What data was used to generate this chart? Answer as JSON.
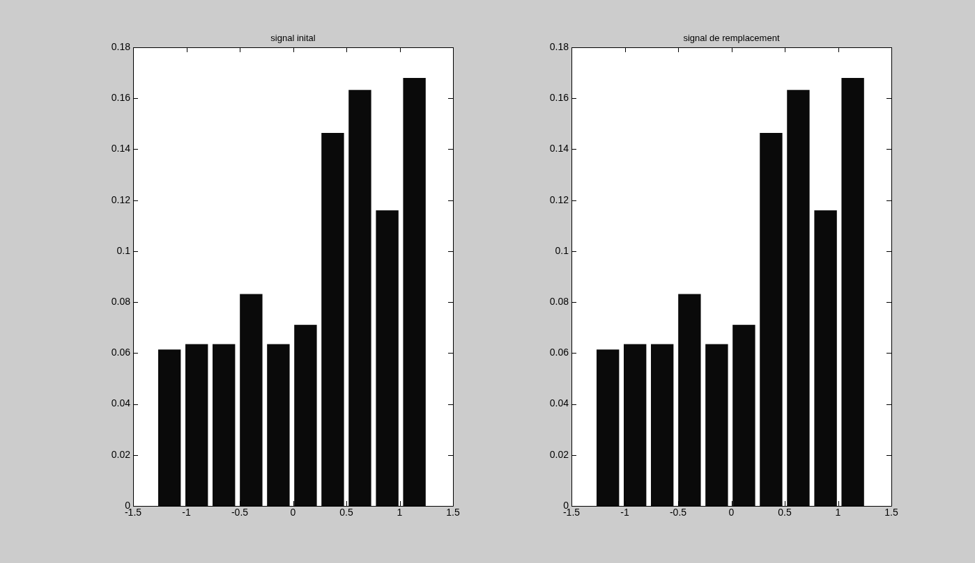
{
  "chart_data": [
    {
      "type": "bar",
      "title": "signal inital",
      "x": [
        -1.159,
        -0.904,
        -0.649,
        -0.393,
        -0.138,
        0.117,
        0.372,
        0.627,
        0.883,
        1.138
      ],
      "values": [
        0.0614,
        0.0635,
        0.0635,
        0.0832,
        0.0635,
        0.0711,
        0.1464,
        0.1633,
        0.116,
        0.168
      ],
      "color": "#0a0a0a",
      "xlim": [
        -1.5,
        1.5
      ],
      "xticks": [
        -1.5,
        -1,
        -0.5,
        0,
        0.5,
        1,
        1.5
      ],
      "ylim": [
        0,
        0.18
      ],
      "yticks": [
        0,
        0.02,
        0.04,
        0.06,
        0.08,
        0.1,
        0.12,
        0.14,
        0.16,
        0.18
      ],
      "grid": false
    },
    {
      "type": "bar",
      "title": "signal de remplacement",
      "x": [
        -1.159,
        -0.904,
        -0.649,
        -0.393,
        -0.138,
        0.117,
        0.372,
        0.627,
        0.883,
        1.138
      ],
      "values": [
        0.0614,
        0.0635,
        0.0635,
        0.0832,
        0.0635,
        0.0711,
        0.1464,
        0.1633,
        0.116,
        0.168
      ],
      "color": "#0a0a0a",
      "xlim": [
        -1.5,
        1.5
      ],
      "xticks": [
        -1.5,
        -1,
        -0.5,
        0,
        0.5,
        1,
        1.5
      ],
      "ylim": [
        0,
        0.18
      ],
      "yticks": [
        0,
        0.02,
        0.04,
        0.06,
        0.08,
        0.1,
        0.12,
        0.14,
        0.16,
        0.18
      ],
      "grid": false
    }
  ]
}
